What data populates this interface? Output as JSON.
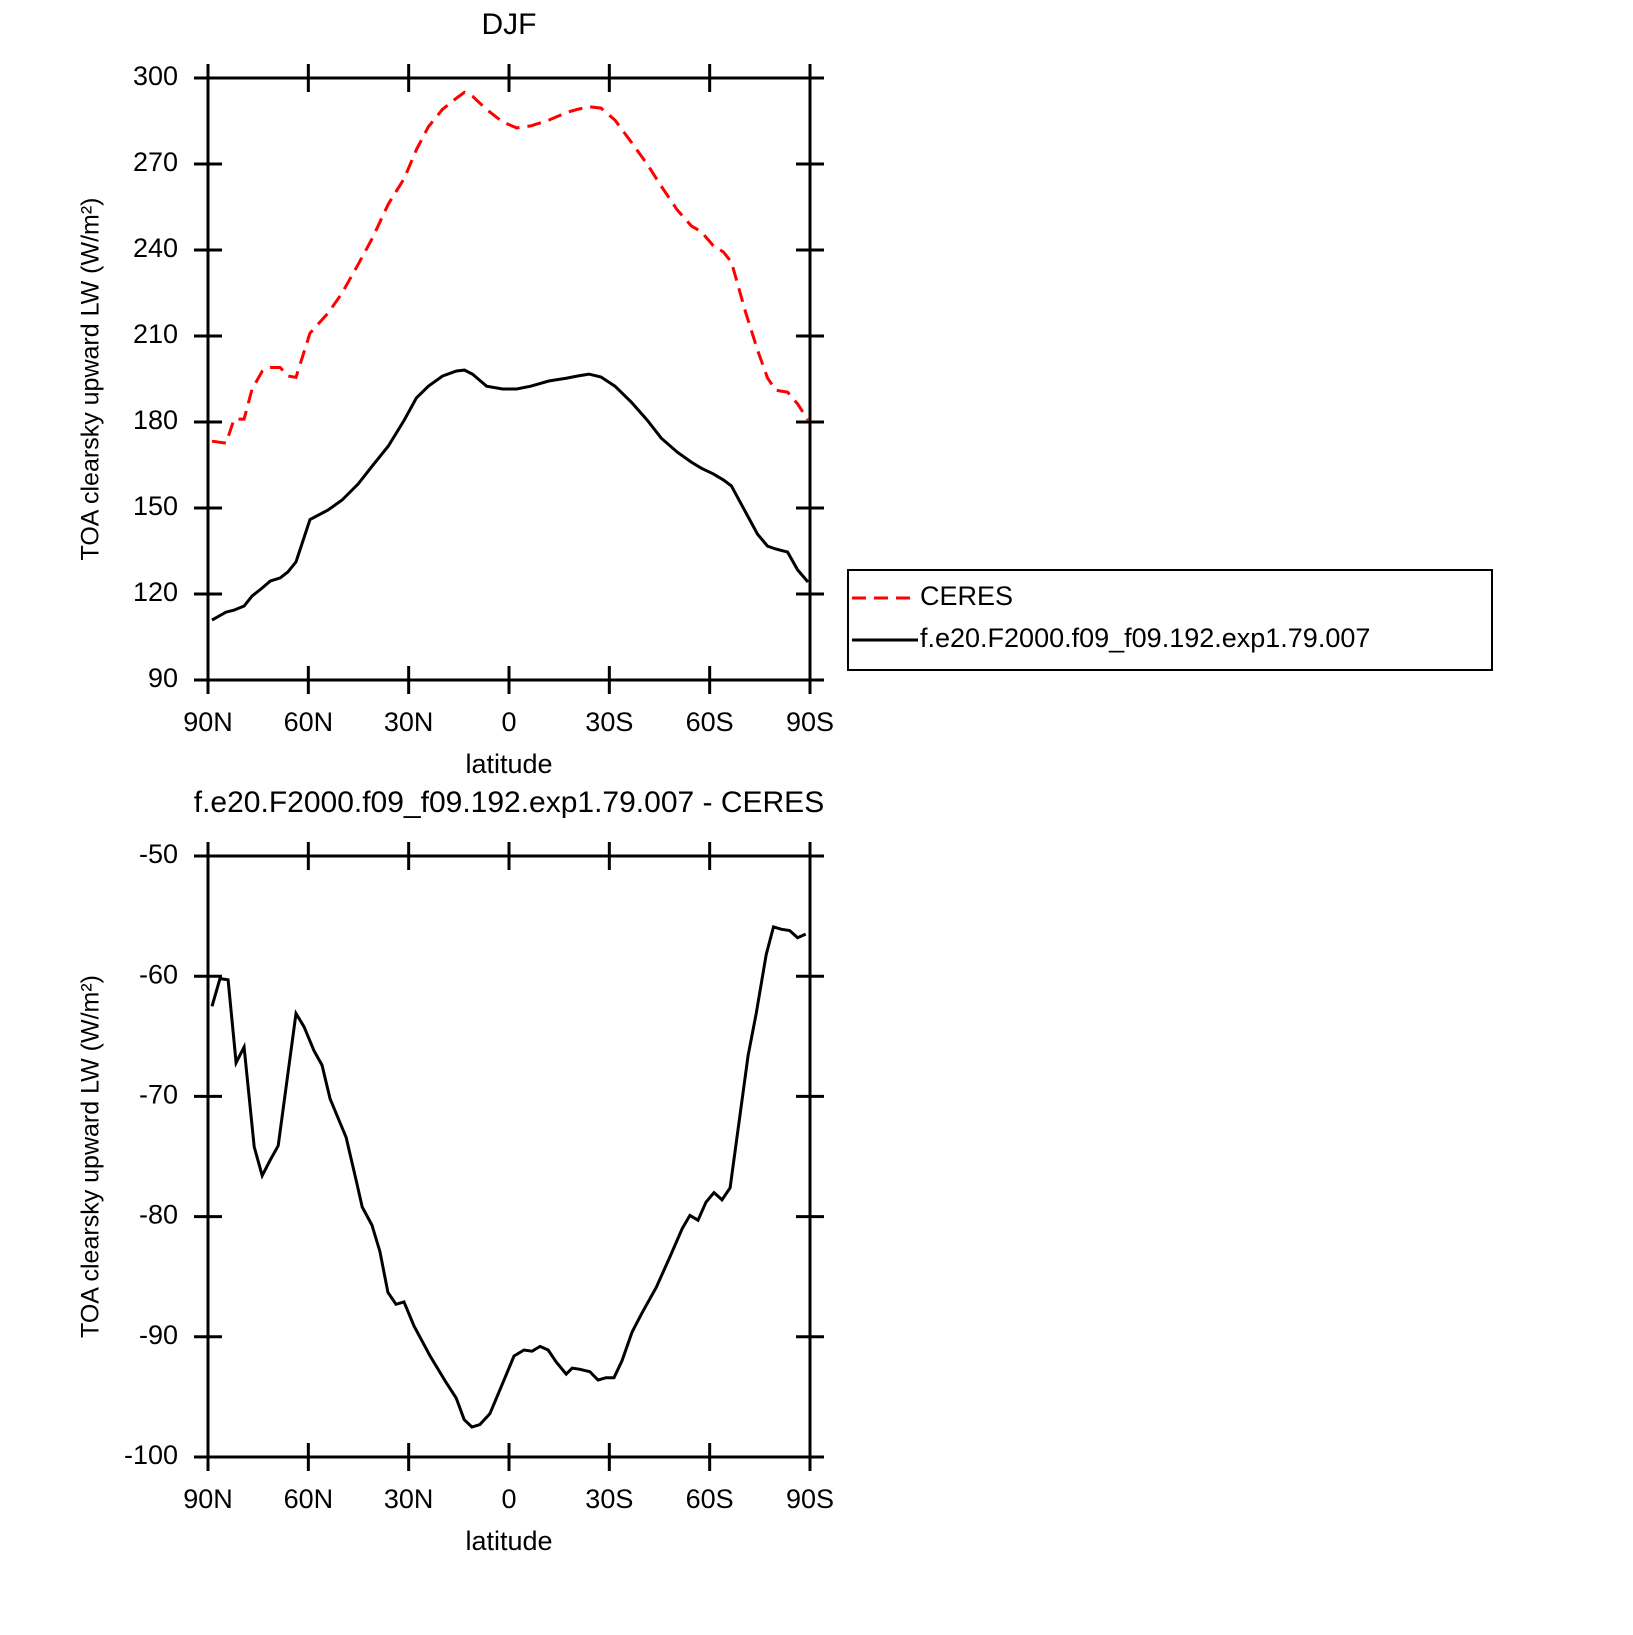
{
  "chart_data": [
    {
      "type": "line",
      "title": "DJF",
      "xlabel": "latitude",
      "ylabel": "TOA clearsky upward LW (W/m²)",
      "x": [
        88.8,
        84.6,
        82.2,
        79.2,
        76.8,
        73.8,
        71.4,
        68.4,
        66.1,
        63.7,
        59.5,
        54.1,
        49.9,
        45.1,
        40.9,
        36.1,
        31.3,
        27.7,
        24.1,
        19.9,
        15.7,
        13.3,
        10.9,
        6.7,
        1.9,
        -2.3,
        -6.5,
        -11.9,
        -17.3,
        -20.3,
        -23.9,
        -27.5,
        -31.7,
        -36.5,
        -41.3,
        -45.5,
        -50.3,
        -54.5,
        -57.5,
        -61.1,
        -64.1,
        -66.5,
        -70.7,
        -74.3,
        -77.3,
        -79.7,
        -83.3,
        -86.3,
        -89.4
      ],
      "series": [
        {
          "name": "CERES",
          "color": "#ff0000",
          "linestyle": "dashed",
          "values": [
            173.3,
            172.6,
            181,
            181,
            191.5,
            197.7,
            199,
            199,
            196,
            195.6,
            211,
            218,
            225,
            235,
            244,
            256,
            265,
            275,
            283,
            289,
            293,
            295,
            293.6,
            289,
            284.7,
            282.6,
            283.3,
            285.3,
            288,
            289,
            290,
            289.5,
            285.3,
            277.7,
            270,
            262.3,
            254,
            248.4,
            246.4,
            241.5,
            239.3,
            235.8,
            218.4,
            205.1,
            195.4,
            191.1,
            190.4,
            186.3,
            180.7
          ]
        },
        {
          "name": "f.e20.F2000.f09_f09.192.exp1.79.007",
          "color": "#000000",
          "linestyle": "solid",
          "values": [
            110.9,
            113.7,
            114.4,
            115.8,
            119.3,
            122.1,
            124.5,
            125.6,
            127.7,
            131.2,
            146,
            149.3,
            152.8,
            158.4,
            164.6,
            171.6,
            180.7,
            188.4,
            192.5,
            196,
            197.8,
            198.1,
            196.7,
            192.5,
            191.5,
            191.5,
            192.5,
            194.3,
            195.3,
            196,
            196.7,
            195.7,
            192.5,
            187,
            180.7,
            174.4,
            169.5,
            166,
            163.9,
            161.9,
            159.8,
            157.7,
            148.6,
            140.9,
            136.7,
            135.7,
            134.6,
            128.4,
            124.2
          ]
        }
      ],
      "xlim": [
        90,
        -90
      ],
      "xticks": [
        {
          "value": 90,
          "label": "90N"
        },
        {
          "value": 60,
          "label": "60N"
        },
        {
          "value": 30,
          "label": "30N"
        },
        0,
        {
          "value": -30,
          "label": "30S"
        },
        {
          "value": -60,
          "label": "60S"
        },
        {
          "value": -90,
          "label": "90S"
        }
      ],
      "ylim": [
        90,
        300
      ],
      "yticks": [
        90,
        120,
        150,
        180,
        210,
        240,
        270,
        300
      ],
      "legend": "right"
    },
    {
      "type": "line",
      "title": "f.e20.F2000.f09_f09.192.exp1.79.007 - CERES",
      "xlabel": "latitude",
      "ylabel": "TOA clearsky upward LW (W/m²)",
      "x": [
        88.8,
        86.4,
        84.0,
        81.6,
        79.2,
        76.2,
        73.8,
        71.4,
        69.0,
        63.7,
        61.3,
        58.3,
        55.9,
        53.5,
        48.7,
        45.7,
        43.9,
        41.0,
        38.6,
        36.2,
        33.8,
        31.4,
        28.4,
        23.6,
        18.8,
        15.8,
        13.4,
        11.1,
        8.7,
        5.7,
        1.5,
        -1.5,
        -4.5,
        -6.9,
        -9.3,
        -11.7,
        -14.1,
        -17.1,
        -18.9,
        -21.2,
        -24.2,
        -26.6,
        -29.0,
        -31.4,
        -33.8,
        -36.8,
        -39.8,
        -44.0,
        -48.2,
        -51.8,
        -54.1,
        -56.5,
        -58.9,
        -61.3,
        -63.7,
        -66.1,
        -71.5,
        -73.9,
        -76.9,
        -79.1,
        -81.5,
        -83.9,
        -86.3,
        -88.7
      ],
      "values": [
        -62.5,
        -60.2,
        -60.3,
        -67.2,
        -65.9,
        -74.2,
        -76.6,
        -75.3,
        -74.1,
        -63.1,
        -64.2,
        -66.2,
        -67.4,
        -70.2,
        -73.4,
        -77.0,
        -79.2,
        -80.7,
        -82.9,
        -86.3,
        -87.3,
        -87.1,
        -89.1,
        -91.6,
        -93.8,
        -95.1,
        -96.9,
        -97.5,
        -97.3,
        -96.4,
        -93.6,
        -91.6,
        -91.1,
        -91.2,
        -90.8,
        -91.1,
        -92.1,
        -93.1,
        -92.6,
        -92.7,
        -92.9,
        -93.6,
        -93.4,
        -93.4,
        -92.0,
        -89.6,
        -88.0,
        -85.9,
        -83.3,
        -81.0,
        -79.9,
        -80.3,
        -78.8,
        -78.0,
        -78.6,
        -77.6,
        -66.6,
        -63.1,
        -58.2,
        -55.9,
        -56.1,
        -56.2,
        -56.8,
        -56.5
      ],
      "color": "#000000",
      "linestyle": "solid",
      "xlim": [
        90,
        -90
      ],
      "xticks": [
        {
          "value": 90,
          "label": "90N"
        },
        {
          "value": 60,
          "label": "60N"
        },
        {
          "value": 30,
          "label": "30N"
        },
        0,
        {
          "value": -30,
          "label": "30S"
        },
        {
          "value": -60,
          "label": "60S"
        },
        {
          "value": -90,
          "label": "90S"
        }
      ],
      "ylim": [
        -100,
        -50
      ],
      "yticks": [
        -100,
        -90,
        -80,
        -70,
        -60,
        -50
      ]
    }
  ]
}
